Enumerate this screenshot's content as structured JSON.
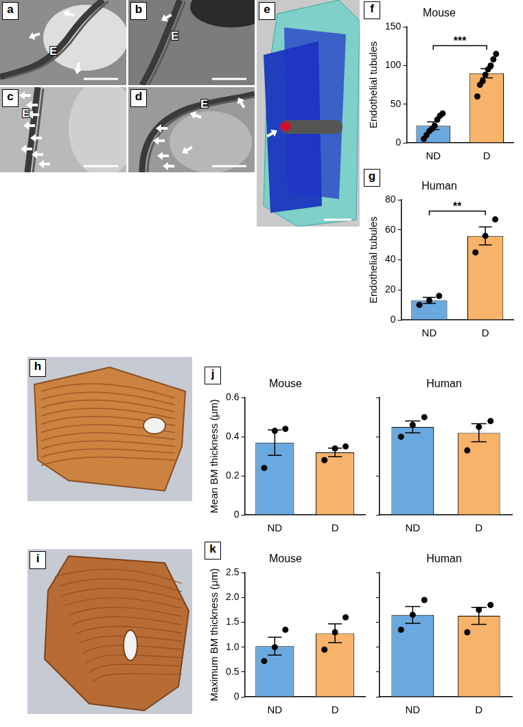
{
  "image_panels": [
    {
      "label": "a",
      "annotations": [
        "E"
      ]
    },
    {
      "label": "b",
      "annotations": [
        "E"
      ]
    },
    {
      "label": "c",
      "annotations": [
        "E"
      ]
    },
    {
      "label": "d",
      "annotations": [
        "E"
      ]
    },
    {
      "label": "e"
    },
    {
      "label": "h"
    },
    {
      "label": "i"
    }
  ],
  "chart_data": [
    {
      "type": "bar",
      "panel_label": "f",
      "title": "Mouse",
      "y_label": "Endothelial tubules",
      "categories": [
        "ND",
        "D"
      ],
      "values": [
        22,
        90
      ],
      "errors": [
        5,
        6
      ],
      "points": [
        [
          5,
          10,
          15,
          18,
          22,
          30,
          35,
          38
        ],
        [
          60,
          75,
          80,
          88,
          95,
          100,
          108,
          115
        ]
      ],
      "colors": [
        "#6aa9e0",
        "#f7b36a"
      ],
      "ylim": [
        0,
        150
      ],
      "yticks": [
        0,
        50,
        100,
        150
      ],
      "grid": false,
      "annotations": [
        "***"
      ]
    },
    {
      "type": "bar",
      "panel_label": "g",
      "title": "Human",
      "y_label": "Endothelial tubules",
      "categories": [
        "ND",
        "D"
      ],
      "values": [
        13,
        56
      ],
      "errors": [
        2,
        6
      ],
      "points": [
        [
          10,
          13,
          16
        ],
        [
          45,
          56,
          67
        ]
      ],
      "colors": [
        "#6aa9e0",
        "#f7b36a"
      ],
      "ylim": [
        0,
        80
      ],
      "yticks": [
        0,
        20,
        40,
        60,
        80
      ],
      "grid": false,
      "annotations": [
        "**"
      ]
    },
    {
      "type": "bar",
      "panel_label": "j",
      "title": "Mouse",
      "y_label": "Mean BM thickness (μm)",
      "categories": [
        "ND",
        "D"
      ],
      "values": [
        0.37,
        0.32
      ],
      "errors": [
        0.065,
        0.022
      ],
      "points": [
        [
          0.24,
          0.43,
          0.44
        ],
        [
          0.28,
          0.34,
          0.35
        ]
      ],
      "colors": [
        "#6aa9e0",
        "#f7b36a"
      ],
      "ylim": [
        0,
        0.6
      ],
      "yticks": [
        0,
        0.2,
        0.4,
        0.6
      ],
      "grid": false
    },
    {
      "type": "bar",
      "title": "Human",
      "categories": [
        "ND",
        "D"
      ],
      "values": [
        0.45,
        0.42
      ],
      "errors": [
        0.03,
        0.046
      ],
      "points": [
        [
          0.4,
          0.46,
          0.5
        ],
        [
          0.33,
          0.45,
          0.48
        ]
      ],
      "colors": [
        "#6aa9e0",
        "#f7b36a"
      ],
      "ylim": [
        0,
        0.6
      ],
      "yticks": [
        0,
        0.2,
        0.4,
        0.6
      ],
      "grid": false,
      "tick_labels": "x"
    },
    {
      "type": "bar",
      "panel_label": "k",
      "title": "Mouse",
      "y_label": "Maximum BM thickness (μm)",
      "categories": [
        "ND",
        "D"
      ],
      "values": [
        1.02,
        1.28
      ],
      "errors": [
        0.18,
        0.19
      ],
      "points": [
        [
          0.72,
          1.0,
          1.35
        ],
        [
          0.95,
          1.3,
          1.6
        ]
      ],
      "colors": [
        "#6aa9e0",
        "#f7b36a"
      ],
      "ylim": [
        0,
        2.5
      ],
      "yticks": [
        0,
        0.5,
        {
          "value": 1,
          "label": "1.0"
        },
        1.5,
        {
          "value": 2,
          "label": "2.0"
        },
        2.5
      ],
      "grid": false
    },
    {
      "type": "bar",
      "title": "Human",
      "categories": [
        "ND",
        "D"
      ],
      "values": [
        1.65,
        1.63
      ],
      "errors": [
        0.17,
        0.17
      ],
      "points": [
        [
          1.35,
          1.65,
          1.95
        ],
        [
          1.3,
          1.75,
          1.85
        ]
      ],
      "colors": [
        "#6aa9e0",
        "#f7b36a"
      ],
      "ylim": [
        0,
        2.5
      ],
      "yticks": [
        0,
        0.5,
        {
          "value": 1,
          "label": "1.0"
        },
        1.5,
        {
          "value": 2,
          "label": "2.0"
        },
        2.5
      ],
      "grid": false,
      "tick_labels": "x"
    }
  ]
}
